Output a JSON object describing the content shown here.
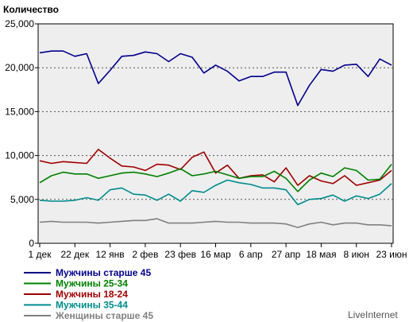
{
  "chart_data": {
    "type": "line",
    "ylabel": "Количество",
    "ylim": [
      0,
      25000
    ],
    "yticks": [
      "0",
      "5,000",
      "10,000",
      "15,000",
      "20,000",
      "25,000"
    ],
    "ytick_values": [
      0,
      5000,
      10000,
      15000,
      20000,
      25000
    ],
    "x_tick_labels": [
      "1 дек",
      "22 дек",
      "12 янв",
      "2 фев",
      "23 фев",
      "16 мар",
      "6 апр",
      "27 апр",
      "18 мая",
      "8 июн",
      "23 июн"
    ],
    "x_tick_index": [
      0,
      3,
      6,
      9,
      12,
      15,
      18,
      21,
      24,
      27,
      30
    ],
    "grid": true,
    "legend_position": "bottom-left",
    "series": [
      {
        "name": "Мужчины старше 45",
        "color": "#00008b",
        "values": [
          21700,
          21900,
          21900,
          21300,
          21600,
          18200,
          19700,
          21300,
          21400,
          21800,
          21600,
          20700,
          21600,
          21200,
          19400,
          20300,
          19600,
          18500,
          19000,
          19000,
          19500,
          19500,
          15700,
          18000,
          19800,
          19600,
          20300,
          20400,
          19000,
          21000,
          20300
        ]
      },
      {
        "name": "Мужчины 25-34",
        "color": "#008000",
        "values": [
          6900,
          7700,
          8100,
          7900,
          7900,
          7400,
          7700,
          8000,
          8100,
          7900,
          7600,
          8000,
          8500,
          7700,
          7900,
          8200,
          7800,
          7400,
          7600,
          7600,
          8200,
          7400,
          5900,
          7200,
          8000,
          7600,
          8600,
          8300,
          7200,
          7300,
          9000
        ]
      },
      {
        "name": "Мужчины 18-24",
        "color": "#a00000",
        "values": [
          9400,
          9100,
          9300,
          9200,
          9100,
          10700,
          9700,
          8800,
          8700,
          8300,
          9000,
          8900,
          8400,
          9800,
          10400,
          8000,
          8900,
          7400,
          7700,
          7800,
          7000,
          8600,
          6600,
          7700,
          7100,
          6800,
          7700,
          6600,
          6900,
          7200,
          8300
        ]
      },
      {
        "name": "Мужчины 35-44",
        "color": "#008b8b",
        "values": [
          4900,
          4800,
          4800,
          4900,
          5200,
          4900,
          6100,
          6300,
          5600,
          5500,
          4900,
          5600,
          4800,
          6000,
          5800,
          6600,
          7200,
          6900,
          6700,
          6300,
          6300,
          6100,
          4400,
          5000,
          5100,
          5500,
          4800,
          5400,
          5100,
          5600,
          6800
        ]
      },
      {
        "name": "Женщины старше 45",
        "color": "#808080",
        "values": [
          2400,
          2500,
          2400,
          2400,
          2400,
          2300,
          2400,
          2500,
          2600,
          2600,
          2800,
          2300,
          2300,
          2300,
          2400,
          2500,
          2400,
          2400,
          2300,
          2300,
          2300,
          2200,
          1800,
          2200,
          2400,
          2100,
          2300,
          2300,
          2100,
          2100,
          2000
        ]
      }
    ]
  },
  "watermark": "LiveInternet"
}
